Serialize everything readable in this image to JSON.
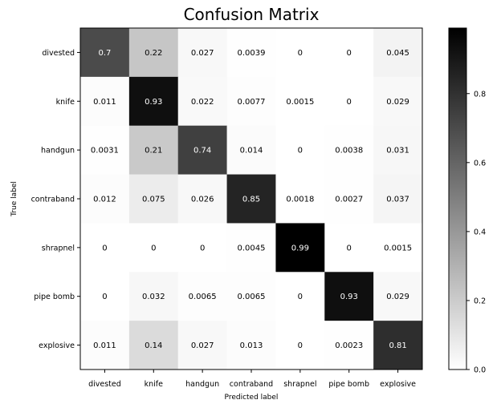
{
  "chart_data": {
    "type": "heatmap",
    "title": "Confusion Matrix",
    "xlabel": "Predicted label",
    "ylabel": "True label",
    "row_labels": [
      "divested",
      "knife",
      "handgun",
      "contraband",
      "shrapnel",
      "pipe bomb",
      "explosive"
    ],
    "col_labels": [
      "divested",
      "knife",
      "handgun",
      "contraband",
      "shrapnel",
      "pipe bomb",
      "explosive"
    ],
    "values": [
      [
        0.7,
        0.22,
        0.027,
        0.0039,
        0,
        0,
        0.045
      ],
      [
        0.011,
        0.93,
        0.022,
        0.0077,
        0.0015,
        0,
        0.029
      ],
      [
        0.0031,
        0.21,
        0.74,
        0.014,
        0,
        0.0038,
        0.031
      ],
      [
        0.012,
        0.075,
        0.026,
        0.85,
        0.0018,
        0.0027,
        0.037
      ],
      [
        0,
        0,
        0,
        0.0045,
        0.99,
        0,
        0.0015
      ],
      [
        0,
        0.032,
        0.0065,
        0.0065,
        0,
        0.93,
        0.029
      ],
      [
        0.011,
        0.14,
        0.027,
        0.013,
        0,
        0.0023,
        0.81
      ]
    ],
    "colormap": "Greys",
    "vmin": 0,
    "vmax": 0.99,
    "colorbar_ticks": [
      "0.0",
      "0.2",
      "0.4",
      "0.6",
      "0.8"
    ]
  }
}
